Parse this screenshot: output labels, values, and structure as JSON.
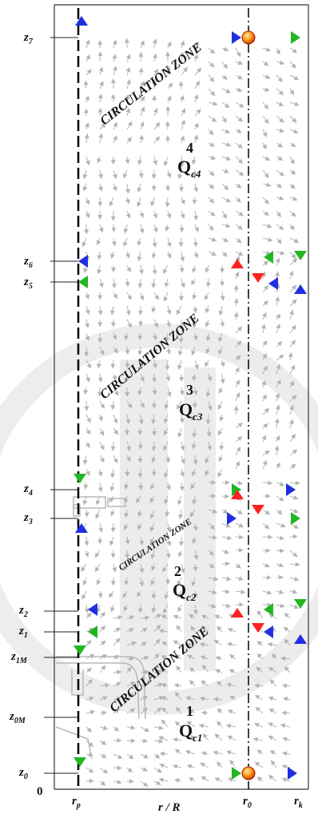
{
  "axis": {
    "origin": "0",
    "xlabel": "r / R",
    "r_labels": [
      {
        "base": "r",
        "sub": "p"
      },
      {
        "base": "r",
        "sub": "0"
      },
      {
        "base": "r",
        "sub": "k"
      }
    ]
  },
  "z_labels": [
    {
      "base": "z",
      "sub": "7"
    },
    {
      "base": "z",
      "sub": "6"
    },
    {
      "base": "z",
      "sub": "5"
    },
    {
      "base": "z",
      "sub": "4"
    },
    {
      "base": "z",
      "sub": "3"
    },
    {
      "base": "z",
      "sub": "2"
    },
    {
      "base": "z",
      "sub": "1"
    },
    {
      "base": "z",
      "sub": "1M"
    },
    {
      "base": "z",
      "sub": "0M"
    },
    {
      "base": "z",
      "sub": "0"
    }
  ],
  "zones": [
    {
      "title": "CIRCULATION ZONE",
      "number": "4",
      "q": "Q",
      "q_sub": "c4"
    },
    {
      "title": "CIRCULATION ZONE",
      "number": "3",
      "q": "Q",
      "q_sub": "c3"
    },
    {
      "title": "CIRCULATION ZONE",
      "number": "2",
      "q": "Q",
      "q_sub": "c2"
    },
    {
      "title": "CIRCULATION ZONE",
      "number": "1",
      "q": "Q",
      "q_sub": "c1"
    }
  ],
  "colors": {
    "blue": "#1f2fe0",
    "green": "#2fbf2f",
    "red": "#ff2020",
    "field": "#b4b4b4",
    "frame": "#333333"
  }
}
